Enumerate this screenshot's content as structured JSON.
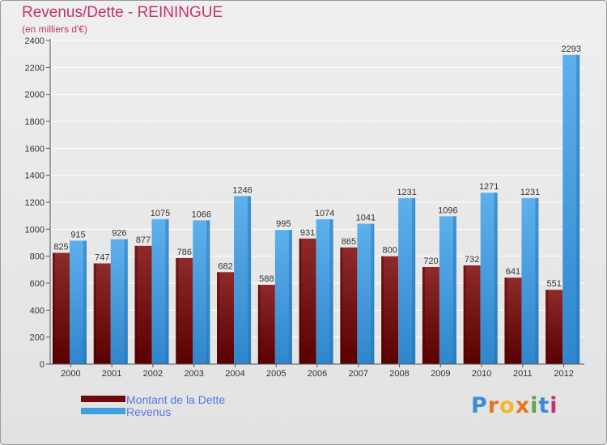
{
  "title": "Revenus/Dette - REININGUE",
  "subtitle": "(en milliers d'€)",
  "logo": {
    "letters": [
      "P",
      "r",
      "o",
      "x",
      "i",
      "t",
      "i"
    ],
    "colors": [
      "#3b8bd8",
      "#e8731e",
      "#f0b82a",
      "#e8731e",
      "#5aa93a",
      "#3b8bd8",
      "#c2326e"
    ]
  },
  "colors": {
    "dette": "#7a0d0d",
    "revenus": "#3f9fe0",
    "title": "#c2326e",
    "legend_text": "#5a78e6"
  },
  "chart_data": {
    "type": "bar",
    "title": "Revenus/Dette - REININGUE",
    "subtitle": "(en milliers d'€)",
    "categories": [
      "2000",
      "2001",
      "2002",
      "2003",
      "2004",
      "2005",
      "2006",
      "2007",
      "2008",
      "2009",
      "2010",
      "2011",
      "2012"
    ],
    "series": [
      {
        "name": "Montant de la Dette",
        "values": [
          825,
          747,
          877,
          786,
          682,
          588,
          931,
          865,
          800,
          720,
          732,
          641,
          551
        ]
      },
      {
        "name": "Revenus",
        "values": [
          915,
          926,
          1075,
          1066,
          1246,
          995,
          1074,
          1041,
          1231,
          1096,
          1271,
          1231,
          2293
        ]
      }
    ],
    "yticks": [
      0,
      200,
      400,
      600,
      800,
      1000,
      1200,
      1400,
      1600,
      1800,
      2000,
      2200,
      2400
    ],
    "ylim": [
      0,
      2400
    ],
    "grid": true,
    "legend": "bottom-left"
  }
}
